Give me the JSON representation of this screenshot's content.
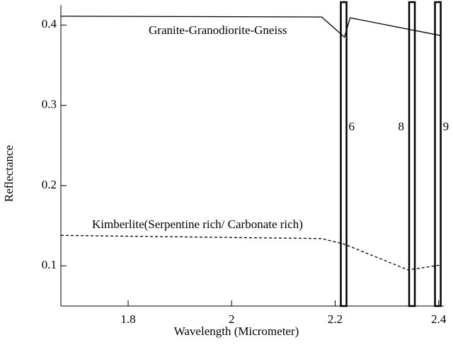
{
  "chart_data": {
    "type": "line",
    "xlabel": "Wavelength (Micrometer)",
    "ylabel": "Reflectance",
    "xlim": [
      1.67,
      2.41
    ],
    "xticks": [
      1.8,
      2.0,
      2.2,
      2.4
    ],
    "ylim": [
      0.05,
      0.425
    ],
    "yticks": [
      0.1,
      0.2,
      0.3,
      0.4
    ],
    "series": [
      {
        "name": "Granite-Granodiorite-Gneiss",
        "color": "#000000",
        "dash": "solid",
        "x": [
          1.67,
          2.174,
          2.218,
          2.229,
          2.403
        ],
        "values": [
          0.411,
          0.41,
          0.385,
          0.409,
          0.387
        ]
      },
      {
        "name": "Kimberlite(Serpentine rich/ Carbonate rich)",
        "color": "#000000",
        "dash": "dashed",
        "x": [
          1.67,
          2.174,
          2.218,
          2.341,
          2.403
        ],
        "values": [
          0.138,
          0.134,
          0.127,
          0.095,
          0.101
        ]
      }
    ],
    "bands": [
      {
        "label": "6",
        "start": 2.211,
        "end": 2.222
      },
      {
        "label": "8",
        "start": 2.343,
        "end": 2.354
      },
      {
        "label": "9",
        "start": 2.393,
        "end": 2.404
      }
    ]
  }
}
